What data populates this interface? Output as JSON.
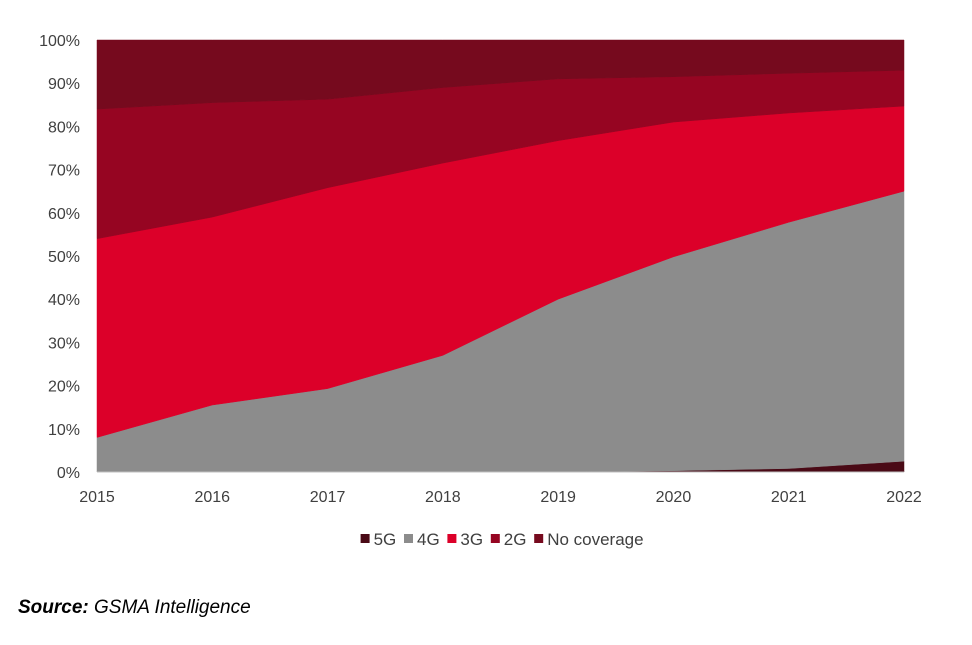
{
  "chart_data": {
    "type": "area",
    "stacked": true,
    "percent": true,
    "x": [
      "2015",
      "2016",
      "2017",
      "2018",
      "2019",
      "2020",
      "2021",
      "2022"
    ],
    "ylim": [
      0,
      100
    ],
    "y_ticks": [
      "0%",
      "10%",
      "20%",
      "30%",
      "40%",
      "50%",
      "60%",
      "70%",
      "80%",
      "90%",
      "100%"
    ],
    "series": [
      {
        "name": "5G",
        "color": "#4a0a16",
        "values": [
          0,
          0,
          0,
          0,
          0,
          0.3,
          0.8,
          2.5
        ]
      },
      {
        "name": "4G",
        "color": "#8c8c8c",
        "values": [
          8,
          15.5,
          19.3,
          27,
          40,
          49.5,
          57,
          62.5
        ]
      },
      {
        "name": "3G",
        "color": "#dc0029",
        "values": [
          46,
          43.5,
          46.5,
          44.5,
          36.7,
          31.2,
          25.3,
          19.7
        ]
      },
      {
        "name": "2G",
        "color": "#960522",
        "values": [
          30,
          26.5,
          20.5,
          17.5,
          14.3,
          10.5,
          9.2,
          8.3
        ]
      },
      {
        "name": "No coverage",
        "color": "#760a1e",
        "values": [
          16,
          14.5,
          13.7,
          11,
          9,
          8.5,
          7.7,
          7
        ]
      }
    ],
    "legend_position": "bottom",
    "grid": false
  },
  "source": {
    "label": "Source:",
    "text": "GSMA Intelligence"
  }
}
